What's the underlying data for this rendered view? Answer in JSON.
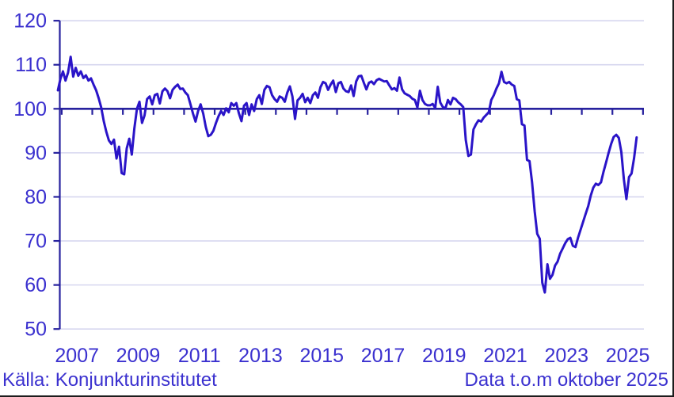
{
  "footer": {
    "source": "Källa: Konjunkturinstitutet",
    "data_note": "Data t.o.m oktober 2025"
  },
  "colors": {
    "line": "#2a14c8",
    "axis": "#27219e",
    "label": "#3b31cf",
    "grid": "#d6d6ef",
    "border": "#1c1c1c",
    "background": "#ffffff"
  },
  "chart_data": {
    "type": "line",
    "title": "",
    "xlabel": "",
    "ylabel": "",
    "x_start": "2006-11",
    "x_end": "2025-10",
    "frequency": "monthly",
    "baseline": 100,
    "ylim": [
      50,
      120
    ],
    "grid": true,
    "legend": "none",
    "y_ticks": [
      50,
      60,
      70,
      80,
      90,
      100,
      110,
      120
    ],
    "x_tick_labels": [
      "2007",
      "2009",
      "2011",
      "2013",
      "2015",
      "2017",
      "2019",
      "2021",
      "2023",
      "2025"
    ],
    "values": [
      104.2,
      106.8,
      108.5,
      106.4,
      108.2,
      111.8,
      107.3,
      109.3,
      107.5,
      108.5,
      107.0,
      107.6,
      106.4,
      106.9,
      105.5,
      104.2,
      102.4,
      100.3,
      97.2,
      94.8,
      92.8,
      92.0,
      93.0,
      88.7,
      91.4,
      85.4,
      85.1,
      91.0,
      93.2,
      89.6,
      95.5,
      100.0,
      101.6,
      96.8,
      98.5,
      102.2,
      102.8,
      101.0,
      103.1,
      103.4,
      101.2,
      104.0,
      104.6,
      104.0,
      102.4,
      104.3,
      105.0,
      105.5,
      104.5,
      104.6,
      103.7,
      103.1,
      101.0,
      98.9,
      97.1,
      99.5,
      101.0,
      98.9,
      95.9,
      93.8,
      94.1,
      95.0,
      96.8,
      98.3,
      99.5,
      98.6,
      100.1,
      99.2,
      101.3,
      100.7,
      101.3,
      99.0,
      97.2,
      100.7,
      101.3,
      98.6,
      101.0,
      99.5,
      102.2,
      103.1,
      101.1,
      104.3,
      105.2,
      104.9,
      103.1,
      102.2,
      101.6,
      102.8,
      102.5,
      101.6,
      103.7,
      105.1,
      102.8,
      97.7,
      101.9,
      102.5,
      103.4,
      101.5,
      102.5,
      101.3,
      103.1,
      103.7,
      102.5,
      104.9,
      106.1,
      105.8,
      104.3,
      105.5,
      106.4,
      103.8,
      105.8,
      106.1,
      104.6,
      104.0,
      103.8,
      105.3,
      102.9,
      106.2,
      107.4,
      107.5,
      105.9,
      104.4,
      105.9,
      106.2,
      105.6,
      106.5,
      106.8,
      106.5,
      106.2,
      106.3,
      105.3,
      104.4,
      104.7,
      104.1,
      107.1,
      104.4,
      103.5,
      103.2,
      102.9,
      102.3,
      102.0,
      100.3,
      104.1,
      102.0,
      101.1,
      100.8,
      100.8,
      101.1,
      100.2,
      105.0,
      101.4,
      100.4,
      100.1,
      102.0,
      101.0,
      102.5,
      102.2,
      101.5,
      101.0,
      100.4,
      92.9,
      89.3,
      89.6,
      95.3,
      96.5,
      97.4,
      97.1,
      98.0,
      98.6,
      99.2,
      102.0,
      103.1,
      104.6,
      105.8,
      108.4,
      106.1,
      105.8,
      106.1,
      105.5,
      105.2,
      102.2,
      101.9,
      96.5,
      96.2,
      88.4,
      88.1,
      83.3,
      76.7,
      71.6,
      70.5,
      60.5,
      58.3,
      64.7,
      61.4,
      62.3,
      64.4,
      65.3,
      67.1,
      68.3,
      69.5,
      70.4,
      70.7,
      68.9,
      68.6,
      70.7,
      72.5,
      74.3,
      76.1,
      77.9,
      80.3,
      82.1,
      83.0,
      82.7,
      83.3,
      85.7,
      87.8,
      90.0,
      92.0,
      93.6,
      94.1,
      93.4,
      90.2,
      84.0,
      79.5,
      84.5,
      85.3,
      88.8,
      93.5
    ]
  }
}
